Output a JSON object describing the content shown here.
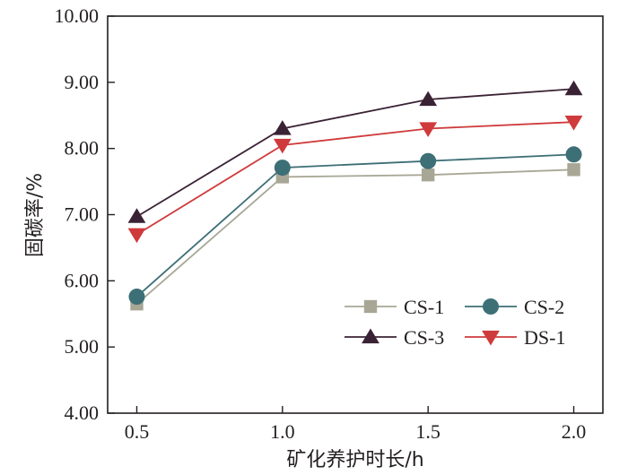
{
  "chart_data": {
    "type": "line",
    "title": "",
    "xlabel": "矿化养护时长/h",
    "ylabel": "固碳率/%",
    "x": [
      0.5,
      1.0,
      1.5,
      2.0
    ],
    "x_tick_labels": [
      "0.5",
      "1.0",
      "1.5",
      "2.0"
    ],
    "ylim": [
      4.0,
      10.0
    ],
    "y_ticks": [
      4.0,
      5.0,
      6.0,
      7.0,
      8.0,
      9.0,
      10.0
    ],
    "y_tick_labels": [
      "4.00",
      "5.00",
      "6.00",
      "7.00",
      "8.00",
      "9.00",
      "10.00"
    ],
    "grid": false,
    "legend_position": "bottom-right",
    "series": [
      {
        "name": "CS-1",
        "marker": "square",
        "color": "#a8a796",
        "values": [
          5.65,
          7.57,
          7.6,
          7.68
        ]
      },
      {
        "name": "CS-2",
        "marker": "circle",
        "color": "#3d6f76",
        "values": [
          5.76,
          7.71,
          7.81,
          7.91
        ]
      },
      {
        "name": "CS-3",
        "marker": "triangle-up",
        "color": "#3a2235",
        "values": [
          6.97,
          8.3,
          8.74,
          8.9
        ]
      },
      {
        "name": "DS-1",
        "marker": "triangle-down",
        "color": "#cf3a3c",
        "values": [
          6.7,
          8.05,
          8.3,
          8.4
        ]
      }
    ]
  }
}
